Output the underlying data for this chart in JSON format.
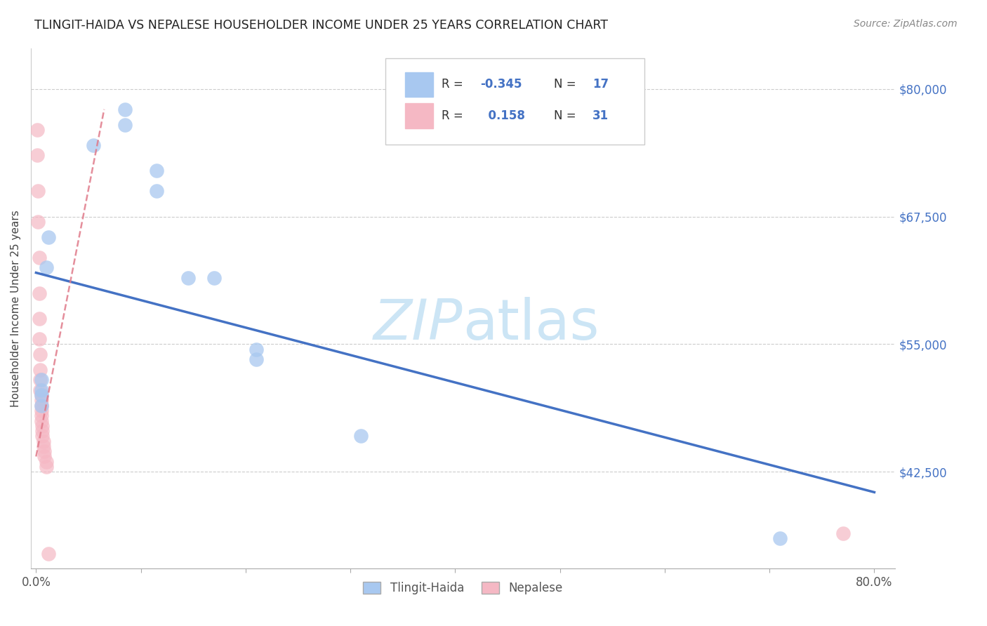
{
  "title": "TLINGIT-HAIDA VS NEPALESE HOUSEHOLDER INCOME UNDER 25 YEARS CORRELATION CHART",
  "source": "Source: ZipAtlas.com",
  "ylabel": "Householder Income Under 25 years",
  "xlim": [
    -0.005,
    0.82
  ],
  "ylim": [
    33000,
    84000
  ],
  "yticks": [
    42500,
    55000,
    67500,
    80000
  ],
  "ytick_labels": [
    "$42,500",
    "$55,000",
    "$67,500",
    "$80,000"
  ],
  "xtick_vals": [
    0.0,
    0.1,
    0.2,
    0.3,
    0.4,
    0.5,
    0.6,
    0.7,
    0.8
  ],
  "xtick_labels": [
    "0.0%",
    "",
    "",
    "",
    "",
    "",
    "",
    "",
    "80.0%"
  ],
  "tlingit_color": "#a8c8f0",
  "nepalese_color": "#f5b8c4",
  "trendline_blue_color": "#4472c4",
  "trendline_pink_color": "#e07a8a",
  "watermark_color": "#cce5f5",
  "tlingit_x": [
    0.01,
    0.012,
    0.055,
    0.085,
    0.085,
    0.115,
    0.115,
    0.145,
    0.17,
    0.21,
    0.21,
    0.31,
    0.71,
    0.005,
    0.005,
    0.005,
    0.005
  ],
  "tlingit_y": [
    62500,
    65500,
    74500,
    78000,
    76500,
    72000,
    70000,
    61500,
    61500,
    53500,
    54500,
    46000,
    36000,
    51500,
    50500,
    50000,
    49000
  ],
  "nepalese_x": [
    0.001,
    0.001,
    0.002,
    0.002,
    0.003,
    0.003,
    0.003,
    0.003,
    0.004,
    0.004,
    0.004,
    0.004,
    0.005,
    0.005,
    0.005,
    0.005,
    0.005,
    0.005,
    0.006,
    0.006,
    0.006,
    0.007,
    0.007,
    0.008,
    0.008,
    0.01,
    0.01,
    0.012,
    0.77
  ],
  "nepalese_y": [
    76000,
    73500,
    70000,
    67000,
    63500,
    60000,
    57500,
    55500,
    54000,
    52500,
    51500,
    50500,
    50000,
    49500,
    49000,
    48500,
    48000,
    47500,
    47000,
    46500,
    46000,
    45500,
    45000,
    44500,
    44000,
    43500,
    43000,
    34500,
    36500
  ],
  "blue_line_x": [
    0.0,
    0.8
  ],
  "blue_line_y": [
    62000,
    40500
  ],
  "pink_line_x": [
    0.0,
    0.065
  ],
  "pink_line_y": [
    44000,
    78000
  ]
}
